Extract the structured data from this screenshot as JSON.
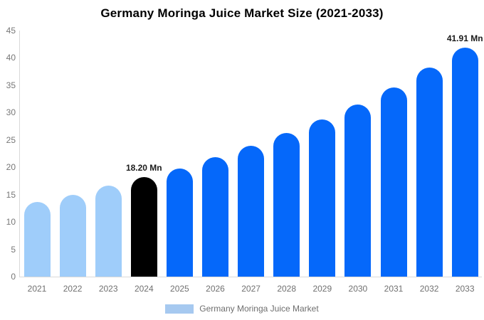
{
  "title": "Germany Moringa Juice Market Size (2021-2033)",
  "chart_data": {
    "type": "bar",
    "title": "Germany Moringa Juice Market Size (2021-2033)",
    "categories": [
      "2021",
      "2022",
      "2023",
      "2024",
      "2025",
      "2026",
      "2027",
      "2028",
      "2029",
      "2030",
      "2031",
      "2032",
      "2033"
    ],
    "values": [
      13.6,
      15.0,
      16.6,
      18.2,
      19.8,
      21.8,
      24.0,
      26.3,
      28.8,
      31.5,
      34.6,
      38.2,
      41.91
    ],
    "unit": "Mn",
    "xlabel": "",
    "ylabel": "",
    "ylim": [
      0,
      45
    ],
    "yticks": [
      0,
      5,
      10,
      15,
      20,
      25,
      30,
      35,
      40,
      45
    ],
    "grid": false,
    "bar_colors": [
      "#9fcdfa",
      "#9fcdfa",
      "#9fcdfa",
      "#000000",
      "#0568fa",
      "#0568fa",
      "#0568fa",
      "#0568fa",
      "#0568fa",
      "#0568fa",
      "#0568fa",
      "#0568fa",
      "#0568fa"
    ],
    "annotations": [
      {
        "category": "2024",
        "text": "18.20 Mn"
      },
      {
        "category": "2033",
        "text": "41.91 Mn"
      }
    ],
    "legend": {
      "position": "bottom",
      "label": "Germany Moringa Juice Market",
      "swatch_color": "#a6c9f0"
    },
    "colors": {
      "past_bar": "#9fcdfa",
      "current_bar": "#000000",
      "forecast_bar": "#0568fa",
      "axis_line": "#d9d9d9",
      "tick_text": "#757575"
    }
  }
}
